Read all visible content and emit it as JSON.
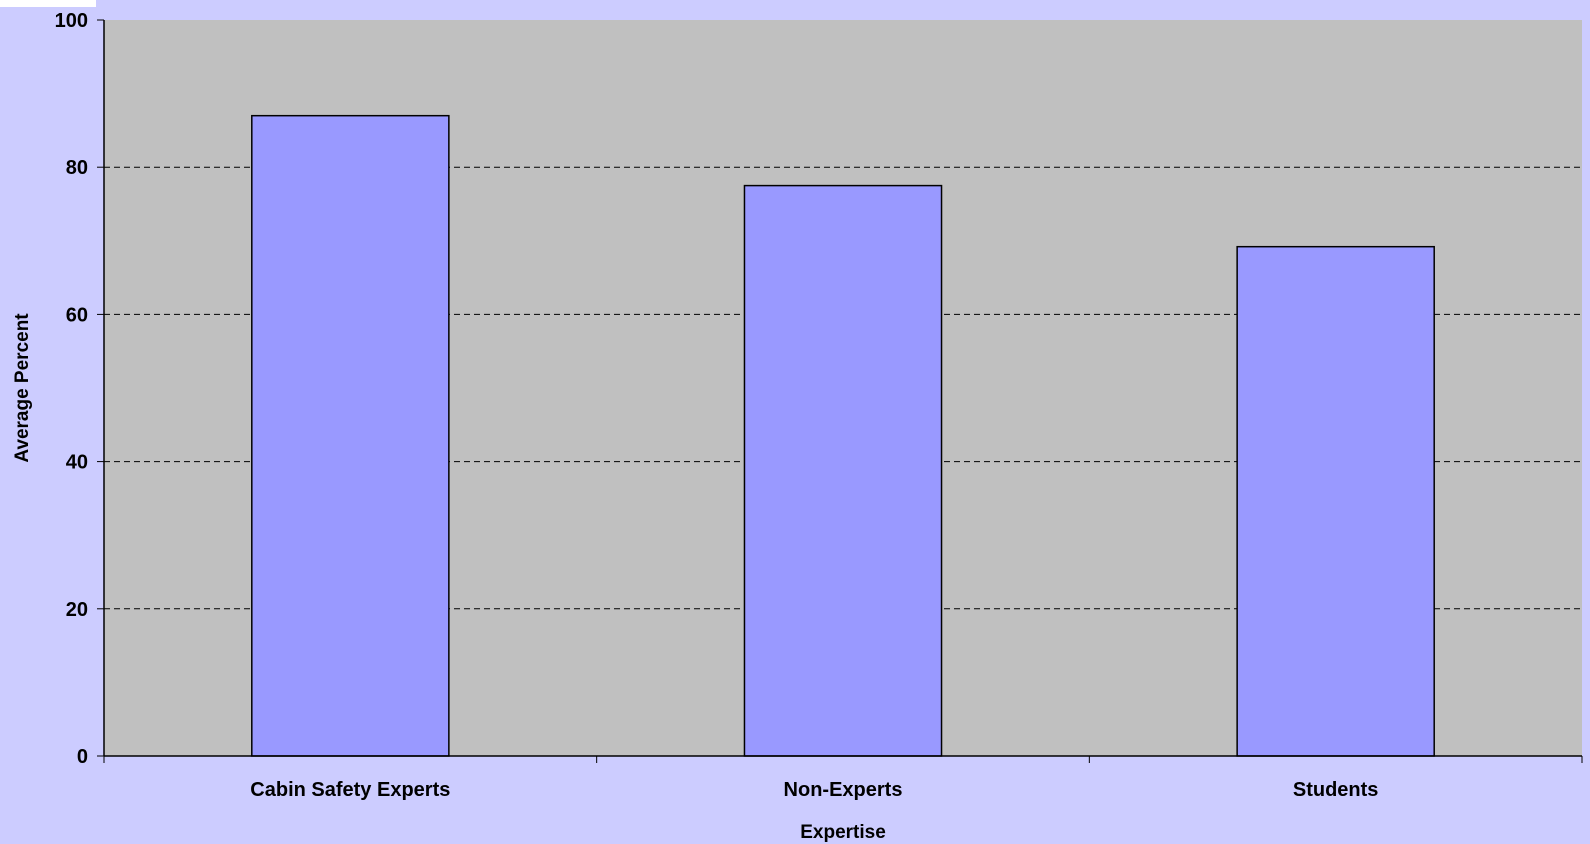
{
  "colors": {
    "page_background": "#ccccff",
    "plot_background": "#c0c0c0",
    "bar_fill": "#9999ff",
    "bar_stroke": "#000000",
    "gridline": "#000000"
  },
  "chart_data": {
    "type": "bar",
    "title": "",
    "xlabel": "Expertise",
    "ylabel": "Average Percent",
    "categories": [
      "Cabin Safety Experts",
      "Non-Experts",
      "Students"
    ],
    "values": [
      87,
      77.5,
      69.2
    ],
    "ylim": [
      0,
      100
    ],
    "yticks": [
      0,
      20,
      40,
      60,
      80,
      100
    ],
    "grid": "horizontal dashed",
    "legend": "none"
  }
}
